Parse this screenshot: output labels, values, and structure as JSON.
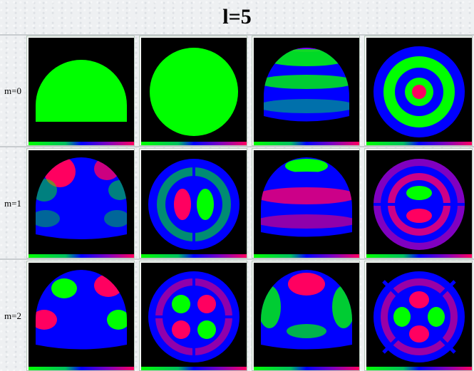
{
  "page": {
    "title": "l=5"
  },
  "rows": [
    {
      "label": "m=0"
    },
    {
      "label": "m=1"
    },
    {
      "label": "m=2"
    }
  ]
}
